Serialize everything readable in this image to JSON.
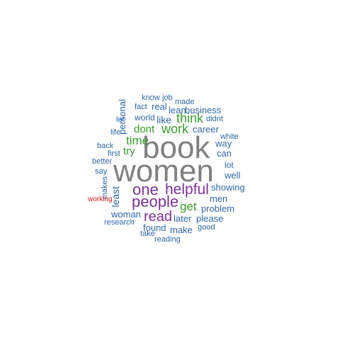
{
  "palette": {
    "gray": "#808080",
    "purple": "#7b3294",
    "green": "#3a9b2f",
    "blue": "#2f66a8",
    "red": "#d7191c"
  },
  "words": [
    {
      "text": "book",
      "color": "gray"
    },
    {
      "text": "women",
      "color": "gray"
    },
    {
      "text": "people",
      "color": "purple"
    },
    {
      "text": "one",
      "color": "purple"
    },
    {
      "text": "helpful",
      "color": "purple"
    },
    {
      "text": "read",
      "color": "purple"
    },
    {
      "text": "think",
      "color": "green"
    },
    {
      "text": "work",
      "color": "green"
    },
    {
      "text": "time",
      "color": "green"
    },
    {
      "text": "dont",
      "color": "green"
    },
    {
      "text": "get",
      "color": "green"
    },
    {
      "text": "try",
      "color": "green"
    },
    {
      "text": "know",
      "color": "blue"
    },
    {
      "text": "job",
      "color": "blue"
    },
    {
      "text": "made",
      "color": "blue"
    },
    {
      "text": "fact",
      "color": "blue"
    },
    {
      "text": "real",
      "color": "blue"
    },
    {
      "text": "lean",
      "color": "blue"
    },
    {
      "text": "business",
      "color": "blue"
    },
    {
      "text": "personal",
      "color": "blue"
    },
    {
      "text": "let",
      "color": "blue"
    },
    {
      "text": "world",
      "color": "blue"
    },
    {
      "text": "like",
      "color": "blue"
    },
    {
      "text": "didnt",
      "color": "blue"
    },
    {
      "text": "life",
      "color": "blue"
    },
    {
      "text": "career",
      "color": "blue"
    },
    {
      "text": "white",
      "color": "blue"
    },
    {
      "text": "back",
      "color": "blue"
    },
    {
      "text": "way",
      "color": "blue"
    },
    {
      "text": "first",
      "color": "blue"
    },
    {
      "text": "can",
      "color": "blue"
    },
    {
      "text": "better",
      "color": "blue"
    },
    {
      "text": "lot",
      "color": "blue"
    },
    {
      "text": "say",
      "color": "blue"
    },
    {
      "text": "well",
      "color": "blue"
    },
    {
      "text": "makes",
      "color": "blue"
    },
    {
      "text": "least",
      "color": "blue"
    },
    {
      "text": "showing",
      "color": "blue"
    },
    {
      "text": "men",
      "color": "blue"
    },
    {
      "text": "working",
      "color": "red"
    },
    {
      "text": "problem",
      "color": "blue"
    },
    {
      "text": "woman",
      "color": "blue"
    },
    {
      "text": "later",
      "color": "blue"
    },
    {
      "text": "please",
      "color": "blue"
    },
    {
      "text": "research",
      "color": "blue"
    },
    {
      "text": "found",
      "color": "blue"
    },
    {
      "text": "make",
      "color": "blue"
    },
    {
      "text": "good",
      "color": "blue"
    },
    {
      "text": "take",
      "color": "blue"
    },
    {
      "text": "reading",
      "color": "blue"
    }
  ]
}
